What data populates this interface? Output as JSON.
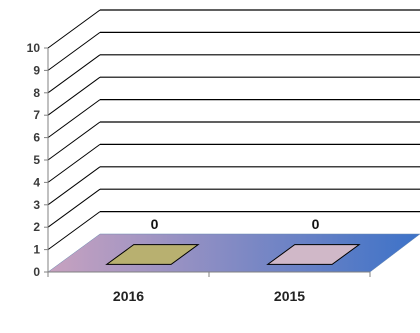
{
  "chart_data": {
    "type": "bar",
    "title": "",
    "xlabel": "",
    "ylabel": "",
    "categories": [
      "2016",
      "2015"
    ],
    "values": [
      0,
      0
    ],
    "data_labels": [
      "0",
      "0"
    ],
    "ylim": [
      0,
      10
    ],
    "yticks": [
      0,
      1,
      2,
      3,
      4,
      5,
      6,
      7,
      8,
      9,
      10
    ],
    "ytick_labels": [
      "0",
      "1",
      "2",
      "3",
      "4",
      "5",
      "6",
      "7",
      "8",
      "9",
      "10"
    ],
    "grid": true,
    "style": "3d",
    "colors": {
      "floor_start": "#c8a2c0",
      "floor_end": "#3c72c8",
      "bar_2016": "#b8b070",
      "bar_2015": "#d0b8c8",
      "axis": "#808080",
      "gridline": "#000000"
    }
  }
}
